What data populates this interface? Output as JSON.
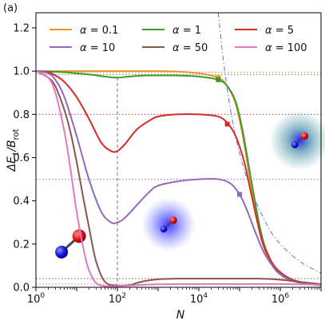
{
  "panel_label": "(a)",
  "colors": {
    "alpha_0_1": "#f0912a",
    "alpha_1": "#3d9a2e",
    "alpha_5": "#d42a2a",
    "alpha_10": "#9467bd",
    "alpha_50": "#8c564b",
    "alpha_100": "#e377c2",
    "guide_vertical": "#8a8a8a",
    "asymptote": "#6a6ae8",
    "molecule_oxygen": "#e02020",
    "molecule_carbon": "#2020e0",
    "glow_blue": "#3a3aff",
    "glow_teal": "#2a9a9a"
  },
  "chart_data": {
    "type": "line",
    "title": "",
    "xlabel": "N",
    "ylabel": "ΔE1/Brot",
    "xscale": "log",
    "xlim": [
      1,
      10000000
    ],
    "ylim": [
      0,
      1.27
    ],
    "x_ticks": [
      1,
      100,
      10000,
      1000000
    ],
    "x_tick_labels": [
      "10^0",
      "10^2",
      "10^4",
      "10^6"
    ],
    "y_ticks": [
      0.0,
      0.2,
      0.4,
      0.6,
      0.8,
      1.0,
      1.2
    ],
    "y_tick_labels": [
      "0.0",
      "0.2",
      "0.4",
      "0.6",
      "0.8",
      "1.0",
      "1.2"
    ],
    "grid": false,
    "legend": {
      "placement": "top",
      "ncol": 3,
      "entries": [
        "α = 0.1",
        "α = 1",
        "α = 5",
        "α = 10",
        "α = 50",
        "α = 100"
      ]
    },
    "series": [
      {
        "name": "α = 0.1",
        "color_key": "alpha_0_1",
        "x": [
          1,
          2,
          5,
          10,
          30,
          100,
          300,
          1000,
          3000,
          10000,
          30000,
          50000,
          80000,
          120000,
          200000,
          350000,
          600000,
          1000000,
          2000000,
          5000000,
          10000000
        ],
        "y": [
          1.0,
          1.0,
          1.0,
          1.0,
          1.0,
          1.0,
          1.0,
          1.0,
          0.998,
          0.99,
          0.97,
          0.93,
          0.85,
          0.7,
          0.45,
          0.22,
          0.11,
          0.06,
          0.03,
          0.015,
          0.01
        ],
        "marker": {
          "x": 30000,
          "y": 0.97
        }
      },
      {
        "name": "α = 1",
        "color_key": "alpha_1",
        "x": [
          1,
          2,
          5,
          10,
          20,
          50,
          100,
          200,
          500,
          1000,
          3000,
          10000,
          30000,
          50000,
          80000,
          120000,
          200000,
          350000,
          600000,
          1000000,
          2000000,
          5000000,
          10000000
        ],
        "y": [
          1.0,
          0.998,
          0.995,
          0.99,
          0.985,
          0.975,
          0.97,
          0.975,
          0.98,
          0.98,
          0.98,
          0.975,
          0.96,
          0.93,
          0.86,
          0.72,
          0.48,
          0.24,
          0.12,
          0.06,
          0.03,
          0.015,
          0.01
        ],
        "marker": {
          "x": 30000,
          "y": 0.96
        }
      },
      {
        "name": "α = 5",
        "color_key": "alpha_5",
        "x": [
          1,
          2,
          3,
          5,
          10,
          20,
          40,
          70,
          100,
          150,
          300,
          600,
          1000,
          3000,
          10000,
          30000,
          50000,
          80000,
          130000,
          200000,
          350000,
          600000,
          1000000,
          2000000,
          5000000,
          10000000
        ],
        "y": [
          1.0,
          0.995,
          0.98,
          0.95,
          0.88,
          0.78,
          0.67,
          0.63,
          0.63,
          0.66,
          0.73,
          0.77,
          0.79,
          0.8,
          0.8,
          0.79,
          0.76,
          0.7,
          0.58,
          0.42,
          0.22,
          0.12,
          0.07,
          0.035,
          0.018,
          0.012
        ],
        "marker": {
          "x": 50000,
          "y": 0.755
        }
      },
      {
        "name": "α = 10",
        "color_key": "alpha_10",
        "x": [
          1,
          2,
          3,
          5,
          10,
          20,
          40,
          70,
          100,
          150,
          300,
          600,
          1000,
          3000,
          10000,
          30000,
          60000,
          100000,
          150000,
          250000,
          400000,
          700000,
          1000000,
          2000000,
          5000000,
          10000000
        ],
        "y": [
          1.0,
          0.99,
          0.96,
          0.88,
          0.7,
          0.5,
          0.35,
          0.3,
          0.3,
          0.32,
          0.38,
          0.44,
          0.47,
          0.49,
          0.5,
          0.5,
          0.48,
          0.43,
          0.36,
          0.25,
          0.16,
          0.09,
          0.06,
          0.03,
          0.015,
          0.01
        ],
        "marker": {
          "x": 100000,
          "y": 0.43
        }
      },
      {
        "name": "α = 50",
        "color_key": "alpha_50",
        "x": [
          1,
          2,
          3,
          5,
          7,
          10,
          15,
          20,
          30,
          50,
          100,
          200,
          300,
          500,
          1000,
          3000,
          10000,
          30000,
          100000,
          300000,
          1000000,
          3000000,
          10000000
        ],
        "y": [
          1.0,
          0.97,
          0.93,
          0.82,
          0.72,
          0.58,
          0.4,
          0.28,
          0.12,
          0.025,
          0.008,
          0.01,
          0.02,
          0.03,
          0.037,
          0.04,
          0.04,
          0.04,
          0.04,
          0.04,
          0.035,
          0.025,
          0.015
        ]
      },
      {
        "name": "α = 100",
        "color_key": "alpha_100",
        "x": [
          1,
          2,
          3,
          5,
          7,
          10,
          15,
          20,
          30,
          50,
          100,
          200,
          500,
          1000,
          10000,
          100000,
          1000000,
          10000000
        ],
        "y": [
          1.0,
          0.97,
          0.9,
          0.72,
          0.55,
          0.35,
          0.17,
          0.08,
          0.02,
          0.006,
          0.005,
          0.008,
          0.012,
          0.014,
          0.015,
          0.015,
          0.015,
          0.012
        ]
      }
    ],
    "horizontal_guides": [
      {
        "y": 0.995,
        "color_key": "alpha_0_1",
        "style": "dotted"
      },
      {
        "y": 0.985,
        "color_key": "alpha_1",
        "style": "dotted"
      },
      {
        "y": 0.8,
        "color_key": "alpha_5",
        "style": "dotted"
      },
      {
        "y": 0.5,
        "color_key": "alpha_10",
        "style": "dotted"
      },
      {
        "y": 0.04,
        "color_key": "alpha_50",
        "style": "dotted"
      },
      {
        "y": 0.015,
        "color_key": "alpha_100",
        "style": "dotted"
      }
    ],
    "vertical_guides": [
      {
        "x": 100,
        "y_from": 0.0,
        "y_to": 0.97,
        "color_key": "guide_vertical",
        "style": "dashed"
      }
    ],
    "asymptote_curve": {
      "color_key": "asymptote",
      "style": "dashdot",
      "x": [
        30000,
        40000,
        60000,
        100000,
        200000,
        500000,
        1000000,
        3000000,
        10000000
      ],
      "y": [
        1.27,
        1.05,
        0.82,
        0.62,
        0.44,
        0.28,
        0.2,
        0.12,
        0.065
      ]
    },
    "annotations": [
      {
        "type": "molecule",
        "label": "molecule-bare",
        "x": 7,
        "y": 0.2
      },
      {
        "type": "molecule-with-glow",
        "label": "molecule-blue-glow",
        "x": 1800,
        "y": 0.29,
        "glow_key": "glow_blue"
      },
      {
        "type": "molecule-with-glow",
        "label": "molecule-teal-glow",
        "x": 3000000,
        "y": 0.68,
        "glow_key": "glow_teal"
      }
    ]
  }
}
